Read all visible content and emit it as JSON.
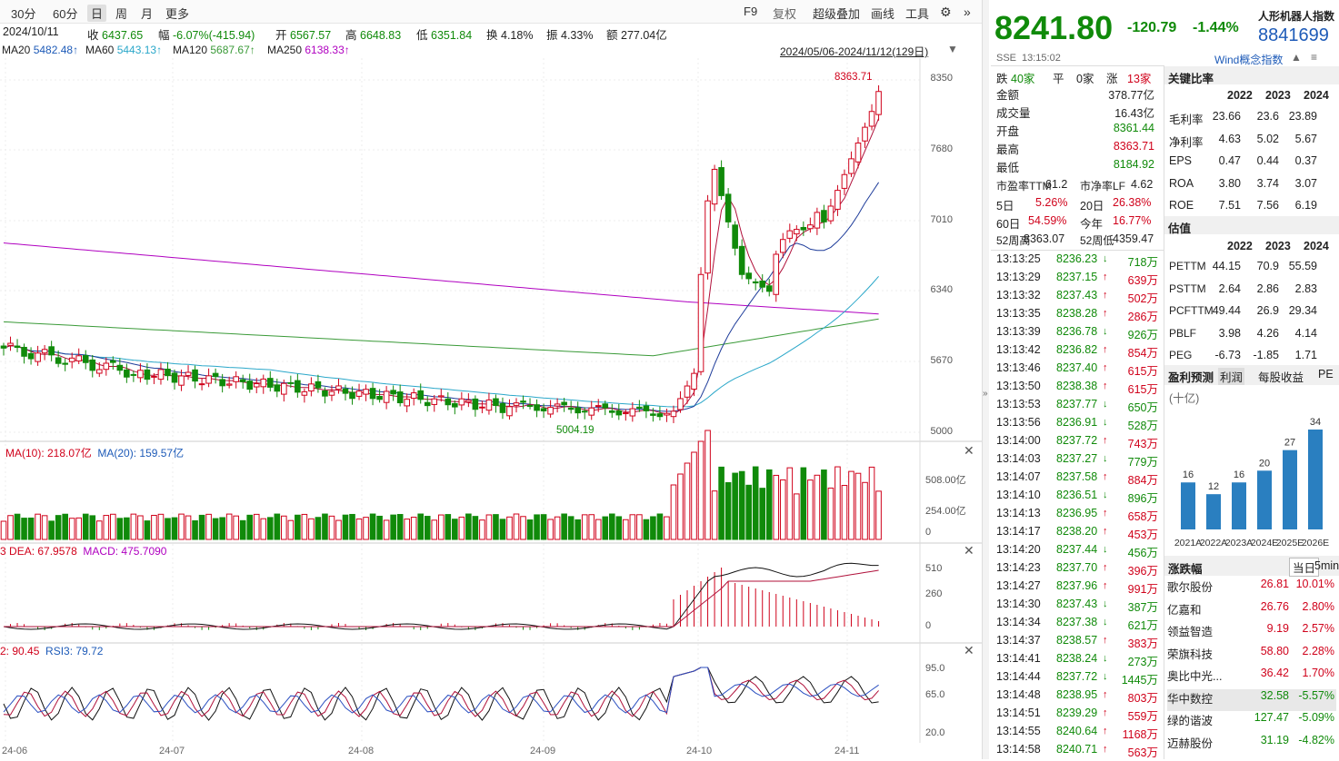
{
  "toolbar": {
    "periods": [
      "30分",
      "60分",
      "日",
      "周",
      "月",
      "更多"
    ],
    "active_period": "日",
    "right_items": [
      "F9",
      "复权",
      "超级叠加",
      "画线",
      "工具"
    ]
  },
  "info": {
    "date": "2024/10/11",
    "close_label": "收",
    "close": "6437.65",
    "amp_label": "幅",
    "amp": "-6.07%(-415.94)",
    "open_label": "开",
    "open": "6567.57",
    "high_label": "高",
    "high": "6648.83",
    "low_label": "低",
    "low": "6351.84",
    "turn_label": "换",
    "turn": "4.18%",
    "swing_label": "振",
    "swing": "4.33%",
    "amount_label": "额",
    "amount": "277.04亿"
  },
  "ma": {
    "ma20": "MA20",
    "ma20_v": "5482.48↑",
    "ma60": "MA60",
    "ma60_v": "5443.13↑",
    "ma120": "MA120",
    "ma120_v": "5687.67↑",
    "ma250": "MA250",
    "ma250_v": "6138.33↑",
    "range": "2024/05/06-2024/11/12(129日)"
  },
  "main_chart": {
    "y_ticks": [
      "8350",
      "7680",
      "7010",
      "6340",
      "5670",
      "5000"
    ],
    "high_mark": "8363.71",
    "low_mark": "5004.19",
    "x_ticks": [
      "24-06",
      "24-07",
      "24-08",
      "24-09",
      "24-10",
      "24-11"
    ]
  },
  "vol": {
    "ma10": "MA(10): 218.07亿",
    "ma20": "MA(20): 159.57亿",
    "ticks": [
      "508.00亿",
      "254.00亿",
      "0"
    ]
  },
  "macd": {
    "prefix": "3",
    "dea": "DEA: 67.9578",
    "macd": "MACD: 475.7090",
    "ticks": [
      "510",
      "260",
      "0"
    ]
  },
  "rsi": {
    "prefix": "2: 90.45",
    "rsi3": "RSI3: 79.72",
    "ticks": [
      "95.0",
      "65.0",
      "20.0"
    ]
  },
  "quote": {
    "price": "8241.80",
    "change": "-120.79",
    "pct": "-1.44%",
    "name": "人形机器人指数",
    "code": "8841699",
    "exch": "SSE",
    "time": "13:15:02",
    "concept": "Wind概念指数"
  },
  "breadth": {
    "down_label": "跌",
    "down": "40家",
    "flat_label": "平",
    "flat": "0家",
    "up_label": "涨",
    "up": "13家"
  },
  "stats": [
    {
      "k": "金额",
      "v": "378.77亿",
      "c": ""
    },
    {
      "k": "成交量",
      "v": "16.43亿",
      "c": ""
    },
    {
      "k": "开盘",
      "v": "8361.44",
      "c": "green"
    },
    {
      "k": "最高",
      "v": "8363.71",
      "c": "red"
    },
    {
      "k": "最低",
      "v": "8184.92",
      "c": "green"
    }
  ],
  "valuation": {
    "pe_l": "市盈率TTM",
    "pe": "61.2",
    "pb_l": "市净率LF",
    "pb": "4.62",
    "d5_l": "5日",
    "d5": "5.26%",
    "d20_l": "20日",
    "d20": "26.38%",
    "d60_l": "60日",
    "d60": "54.59%",
    "ytd_l": "今年",
    "ytd": "16.77%",
    "h52_l": "52周高",
    "h52": "8363.07",
    "l52_l": "52周低",
    "l52": "4359.47"
  },
  "ticks": [
    {
      "t": "13:13:25",
      "p": "8236.23",
      "d": "dn",
      "v": "718万"
    },
    {
      "t": "13:13:29",
      "p": "8237.15",
      "d": "up",
      "v": "639万"
    },
    {
      "t": "13:13:32",
      "p": "8237.43",
      "d": "up",
      "v": "502万"
    },
    {
      "t": "13:13:35",
      "p": "8238.28",
      "d": "up",
      "v": "286万"
    },
    {
      "t": "13:13:39",
      "p": "8236.78",
      "d": "dn",
      "v": "926万"
    },
    {
      "t": "13:13:42",
      "p": "8236.82",
      "d": "up",
      "v": "854万"
    },
    {
      "t": "13:13:46",
      "p": "8237.40",
      "d": "up",
      "v": "615万"
    },
    {
      "t": "13:13:50",
      "p": "8238.38",
      "d": "up",
      "v": "615万"
    },
    {
      "t": "13:13:53",
      "p": "8237.77",
      "d": "dn",
      "v": "650万"
    },
    {
      "t": "13:13:56",
      "p": "8236.91",
      "d": "dn",
      "v": "528万"
    },
    {
      "t": "13:14:00",
      "p": "8237.72",
      "d": "up",
      "v": "743万"
    },
    {
      "t": "13:14:03",
      "p": "8237.27",
      "d": "dn",
      "v": "779万"
    },
    {
      "t": "13:14:07",
      "p": "8237.58",
      "d": "up",
      "v": "884万"
    },
    {
      "t": "13:14:10",
      "p": "8236.51",
      "d": "dn",
      "v": "896万"
    },
    {
      "t": "13:14:13",
      "p": "8236.95",
      "d": "up",
      "v": "658万"
    },
    {
      "t": "13:14:17",
      "p": "8238.20",
      "d": "up",
      "v": "453万"
    },
    {
      "t": "13:14:20",
      "p": "8237.44",
      "d": "dn",
      "v": "456万"
    },
    {
      "t": "13:14:23",
      "p": "8237.70",
      "d": "up",
      "v": "396万"
    },
    {
      "t": "13:14:27",
      "p": "8237.96",
      "d": "up",
      "v": "991万"
    },
    {
      "t": "13:14:30",
      "p": "8237.43",
      "d": "dn",
      "v": "387万"
    },
    {
      "t": "13:14:34",
      "p": "8237.38",
      "d": "dn",
      "v": "621万"
    },
    {
      "t": "13:14:37",
      "p": "8238.57",
      "d": "up",
      "v": "383万"
    },
    {
      "t": "13:14:41",
      "p": "8238.24",
      "d": "dn",
      "v": "273万"
    },
    {
      "t": "13:14:44",
      "p": "8237.72",
      "d": "dn",
      "v": "1445万"
    },
    {
      "t": "13:14:48",
      "p": "8238.95",
      "d": "up",
      "v": "803万"
    },
    {
      "t": "13:14:51",
      "p": "8239.29",
      "d": "up",
      "v": "559万"
    },
    {
      "t": "13:14:55",
      "p": "8240.64",
      "d": "up",
      "v": "1168万"
    },
    {
      "t": "13:14:58",
      "p": "8240.71",
      "d": "up",
      "v": "563万"
    }
  ],
  "ratios": {
    "title": "关键比率",
    "years": [
      "2022",
      "2023",
      "2024"
    ],
    "rows": [
      {
        "k": "毛利率",
        "v": [
          "23.66",
          "23.6",
          "23.89"
        ]
      },
      {
        "k": "净利率",
        "v": [
          "4.63",
          "5.02",
          "5.67"
        ]
      },
      {
        "k": "EPS",
        "v": [
          "0.47",
          "0.44",
          "0.37"
        ]
      },
      {
        "k": "ROA",
        "v": [
          "3.80",
          "3.74",
          "3.07"
        ]
      },
      {
        "k": "ROE",
        "v": [
          "7.51",
          "7.56",
          "6.19"
        ]
      }
    ],
    "val_title": "估值",
    "val_rows": [
      {
        "k": "PETTM",
        "v": [
          "44.15",
          "70.9",
          "55.59"
        ]
      },
      {
        "k": "PSTTM",
        "v": [
          "2.64",
          "2.86",
          "2.83"
        ]
      },
      {
        "k": "PCFTTM",
        "v": [
          "49.44",
          "26.9",
          "29.34"
        ]
      },
      {
        "k": "PBLF",
        "v": [
          "3.98",
          "4.26",
          "4.14"
        ]
      },
      {
        "k": "PEG",
        "v": [
          "-6.73",
          "-1.85",
          "1.71"
        ]
      }
    ]
  },
  "forecast": {
    "tabs": [
      "盈利预测",
      "利润",
      "每股收益",
      "PE"
    ],
    "unit": "(十亿)",
    "bar_chart": {
      "type": "bar",
      "categories": [
        "2021A",
        "2022A",
        "2023A",
        "2024E",
        "2025E",
        "2026E"
      ],
      "values": [
        16,
        12,
        16,
        20,
        27,
        34
      ]
    }
  },
  "movers": {
    "title": "涨跌幅",
    "tabs": [
      "当日",
      "5min"
    ],
    "rows": [
      {
        "n": "歌尔股份",
        "p": "26.81",
        "c": "10.01%",
        "s": "up"
      },
      {
        "n": "亿嘉和",
        "p": "26.76",
        "c": "2.80%",
        "s": "up"
      },
      {
        "n": "领益智造",
        "p": "9.19",
        "c": "2.57%",
        "s": "up"
      },
      {
        "n": "荣旗科技",
        "p": "58.80",
        "c": "2.28%",
        "s": "up"
      },
      {
        "n": "奥比中光...",
        "p": "36.42",
        "c": "1.70%",
        "s": "up"
      },
      {
        "n": "华中数控",
        "p": "32.58",
        "c": "-5.57%",
        "s": "dn"
      },
      {
        "n": "绿的谐波",
        "p": "127.47",
        "c": "-5.09%",
        "s": "dn"
      },
      {
        "n": "迈赫股份",
        "p": "31.19",
        "c": "-4.82%",
        "s": "dn"
      }
    ]
  },
  "colors": {
    "up": "#d0021b",
    "down": "#108a0a",
    "bar": "#2a7fc0"
  }
}
